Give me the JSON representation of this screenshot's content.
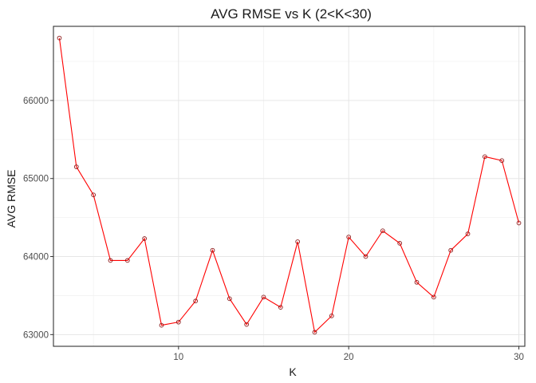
{
  "chart_data": {
    "type": "line",
    "title": "AVG RMSE vs K (2<K<30)",
    "xlabel": "K",
    "ylabel": "AVG RMSE",
    "xlim": [
      2.65,
      30.35
    ],
    "ylim": [
      62850,
      66950
    ],
    "xticks": [
      10,
      20,
      30
    ],
    "yticks": [
      63000,
      64000,
      65000,
      66000
    ],
    "xtick_labels": [
      "10",
      "20",
      "30"
    ],
    "ytick_labels": [
      "63000",
      "64000",
      "65000",
      "66000"
    ],
    "grid": true,
    "legend": "none",
    "series": [
      {
        "line_color": "#ff0000",
        "marker_color": "#8b1a1a",
        "marker": "open-circle",
        "x": [
          3,
          4,
          5,
          6,
          7,
          8,
          9,
          10,
          11,
          12,
          13,
          14,
          15,
          16,
          17,
          18,
          19,
          20,
          21,
          22,
          23,
          24,
          25,
          26,
          27,
          28,
          29,
          30
        ],
        "values": [
          66800,
          65150,
          64790,
          63950,
          63950,
          64230,
          63120,
          63160,
          63430,
          64080,
          63460,
          63130,
          63480,
          63350,
          64190,
          63030,
          63240,
          64250,
          64000,
          64330,
          64170,
          63670,
          63480,
          64080,
          64290,
          65280,
          65230,
          64430
        ]
      }
    ]
  }
}
